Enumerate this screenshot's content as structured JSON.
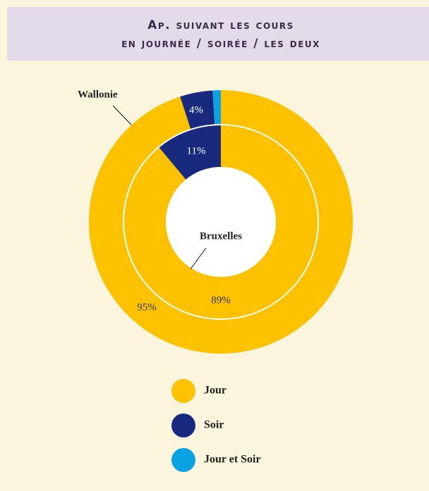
{
  "chart_data": {
    "type": "donut",
    "title": [
      "Ap. suivant les cours",
      "en journée / soirée / les deux"
    ],
    "categories": [
      "Jour",
      "Soir",
      "Jour et Soir"
    ],
    "colors": [
      "#fcc200",
      "#192a7e",
      "#0aa2e0"
    ],
    "series": [
      {
        "name": "Wallonie",
        "values": [
          95,
          4,
          1
        ],
        "value_labels": [
          "95%",
          "4%",
          null
        ]
      },
      {
        "name": "Bruxelles",
        "values": [
          89,
          11,
          0
        ],
        "value_labels": [
          "89%",
          "11%",
          null
        ]
      }
    ],
    "legend": "bottom"
  }
}
